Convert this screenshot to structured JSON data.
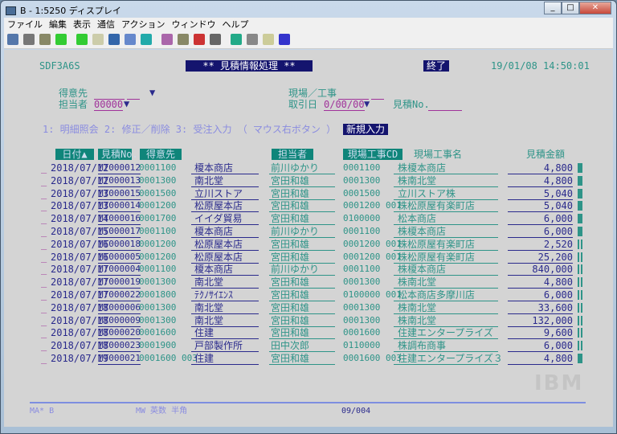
{
  "window": {
    "title": "B - 1:5250 ディスプレイ",
    "controls": [
      "_",
      "□",
      "✕"
    ]
  },
  "menu": [
    "ファイル",
    "編集",
    "表示",
    "通信",
    "アクション",
    "ウィンドウ",
    "ヘルプ"
  ],
  "toolbar": [
    "print-screen",
    "copy",
    "paste",
    "send",
    "receive",
    "file",
    "macro",
    "settings",
    "display",
    "color",
    "keyboard",
    "record",
    "stop",
    "play",
    "pause",
    "notes",
    "help"
  ],
  "screen": {
    "program_id": "SDF3A6S",
    "title": "** 見積情報処理 **",
    "exit_label": "終了",
    "datetime": "19/01/08  14:50:01",
    "fields": {
      "customer_label": "得意先",
      "staff_label": "担当者",
      "staff_value": "00000",
      "site_label": "現場／工事",
      "date_label": "取引日",
      "date_value": "0/00/00",
      "quote_no_label": "見積No."
    },
    "help_text": "1: 明細照会   2: 修正／削除   3: 受注入力  （ マウス右ボタン ）",
    "new_button": "新規入力",
    "columns": [
      "日付▲",
      "見積No.",
      "得意先",
      "担当者",
      "現場工事CD",
      "現場工事名",
      "見積金額"
    ],
    "rows": [
      [
        "2018/07/12",
        "MT000012",
        "0001100",
        "榎本商店",
        "前川ゆかり",
        "0001100",
        "株榎本商店",
        "4,800"
      ],
      [
        "2018/07/12",
        "MT000013",
        "0001300",
        "南北堂",
        "宮田和雄",
        "0001300",
        "株南北堂",
        "4,800"
      ],
      [
        "2018/07/13",
        "MT000015",
        "0001500",
        "立川ストア",
        "宮田和雄",
        "0001500",
        "立川ストア株",
        "5,040"
      ],
      [
        "2018/07/13",
        "MT000014",
        "0001200",
        "松原屋本店",
        "宮田和雄",
        "0001200 001",
        "株松原屋有楽町店",
        "5,040"
      ],
      [
        "2018/07/14",
        "MT000016",
        "0001700",
        "イイダ貿易",
        "宮田和雄",
        "0100000",
        "松本商店",
        "6,000"
      ],
      [
        "2018/07/15",
        "MT000017",
        "0001100",
        "榎本商店",
        "前川ゆかり",
        "0001100",
        "株榎本商店",
        "6,000"
      ],
      [
        "2018/07/16",
        "MT000018",
        "0001200",
        "松原屋本店",
        "宮田和雄",
        "0001200 001",
        "株松原屋有楽町店",
        "2,520"
      ],
      [
        "2018/07/16",
        "MT000005",
        "0001200",
        "松原屋本店",
        "宮田和雄",
        "0001200 001",
        "株松原屋有楽町店",
        "25,200"
      ],
      [
        "2018/07/17",
        "MT000004",
        "0001100",
        "榎本商店",
        "前川ゆかり",
        "0001100",
        "株榎本商店",
        "840,000"
      ],
      [
        "2018/07/17",
        "MT000019",
        "0001300",
        "南北堂",
        "宮田和雄",
        "0001300",
        "株南北堂",
        "4,800"
      ],
      [
        "2018/07/17",
        "MT000022",
        "0001800",
        "ﾃｸﾉｻｲｴﾝｽ",
        "宮田和雄",
        "0100000 001",
        "松本商店多摩川店",
        "6,000"
      ],
      [
        "2018/07/18",
        "MT000006",
        "0001300",
        "南北堂",
        "宮田和雄",
        "0001300",
        "株南北堂",
        "33,600"
      ],
      [
        "2018/07/18",
        "MT000009",
        "0001300",
        "南北堂",
        "宮田和雄",
        "0001300",
        "株南北堂",
        "132,000"
      ],
      [
        "2018/07/18",
        "MT000020",
        "0001600",
        "住建",
        "宮田和雄",
        "0001600",
        "住建エンタープライズ",
        "9,600"
      ],
      [
        "2018/07/18",
        "MT000023",
        "0001900",
        "戸部製作所",
        "田中次郎",
        "0110000",
        "株調布商事",
        "6,000"
      ],
      [
        "2018/07/19",
        "MT000021",
        "0001600 003",
        "住建",
        "宮田和雄",
        "0001600 003",
        "住建エンタープライズ３",
        "4,800"
      ]
    ],
    "logo": "IBM",
    "status": {
      "left": "MA*   B",
      "mode": "MW   英数 半角",
      "position": "09/004"
    }
  }
}
